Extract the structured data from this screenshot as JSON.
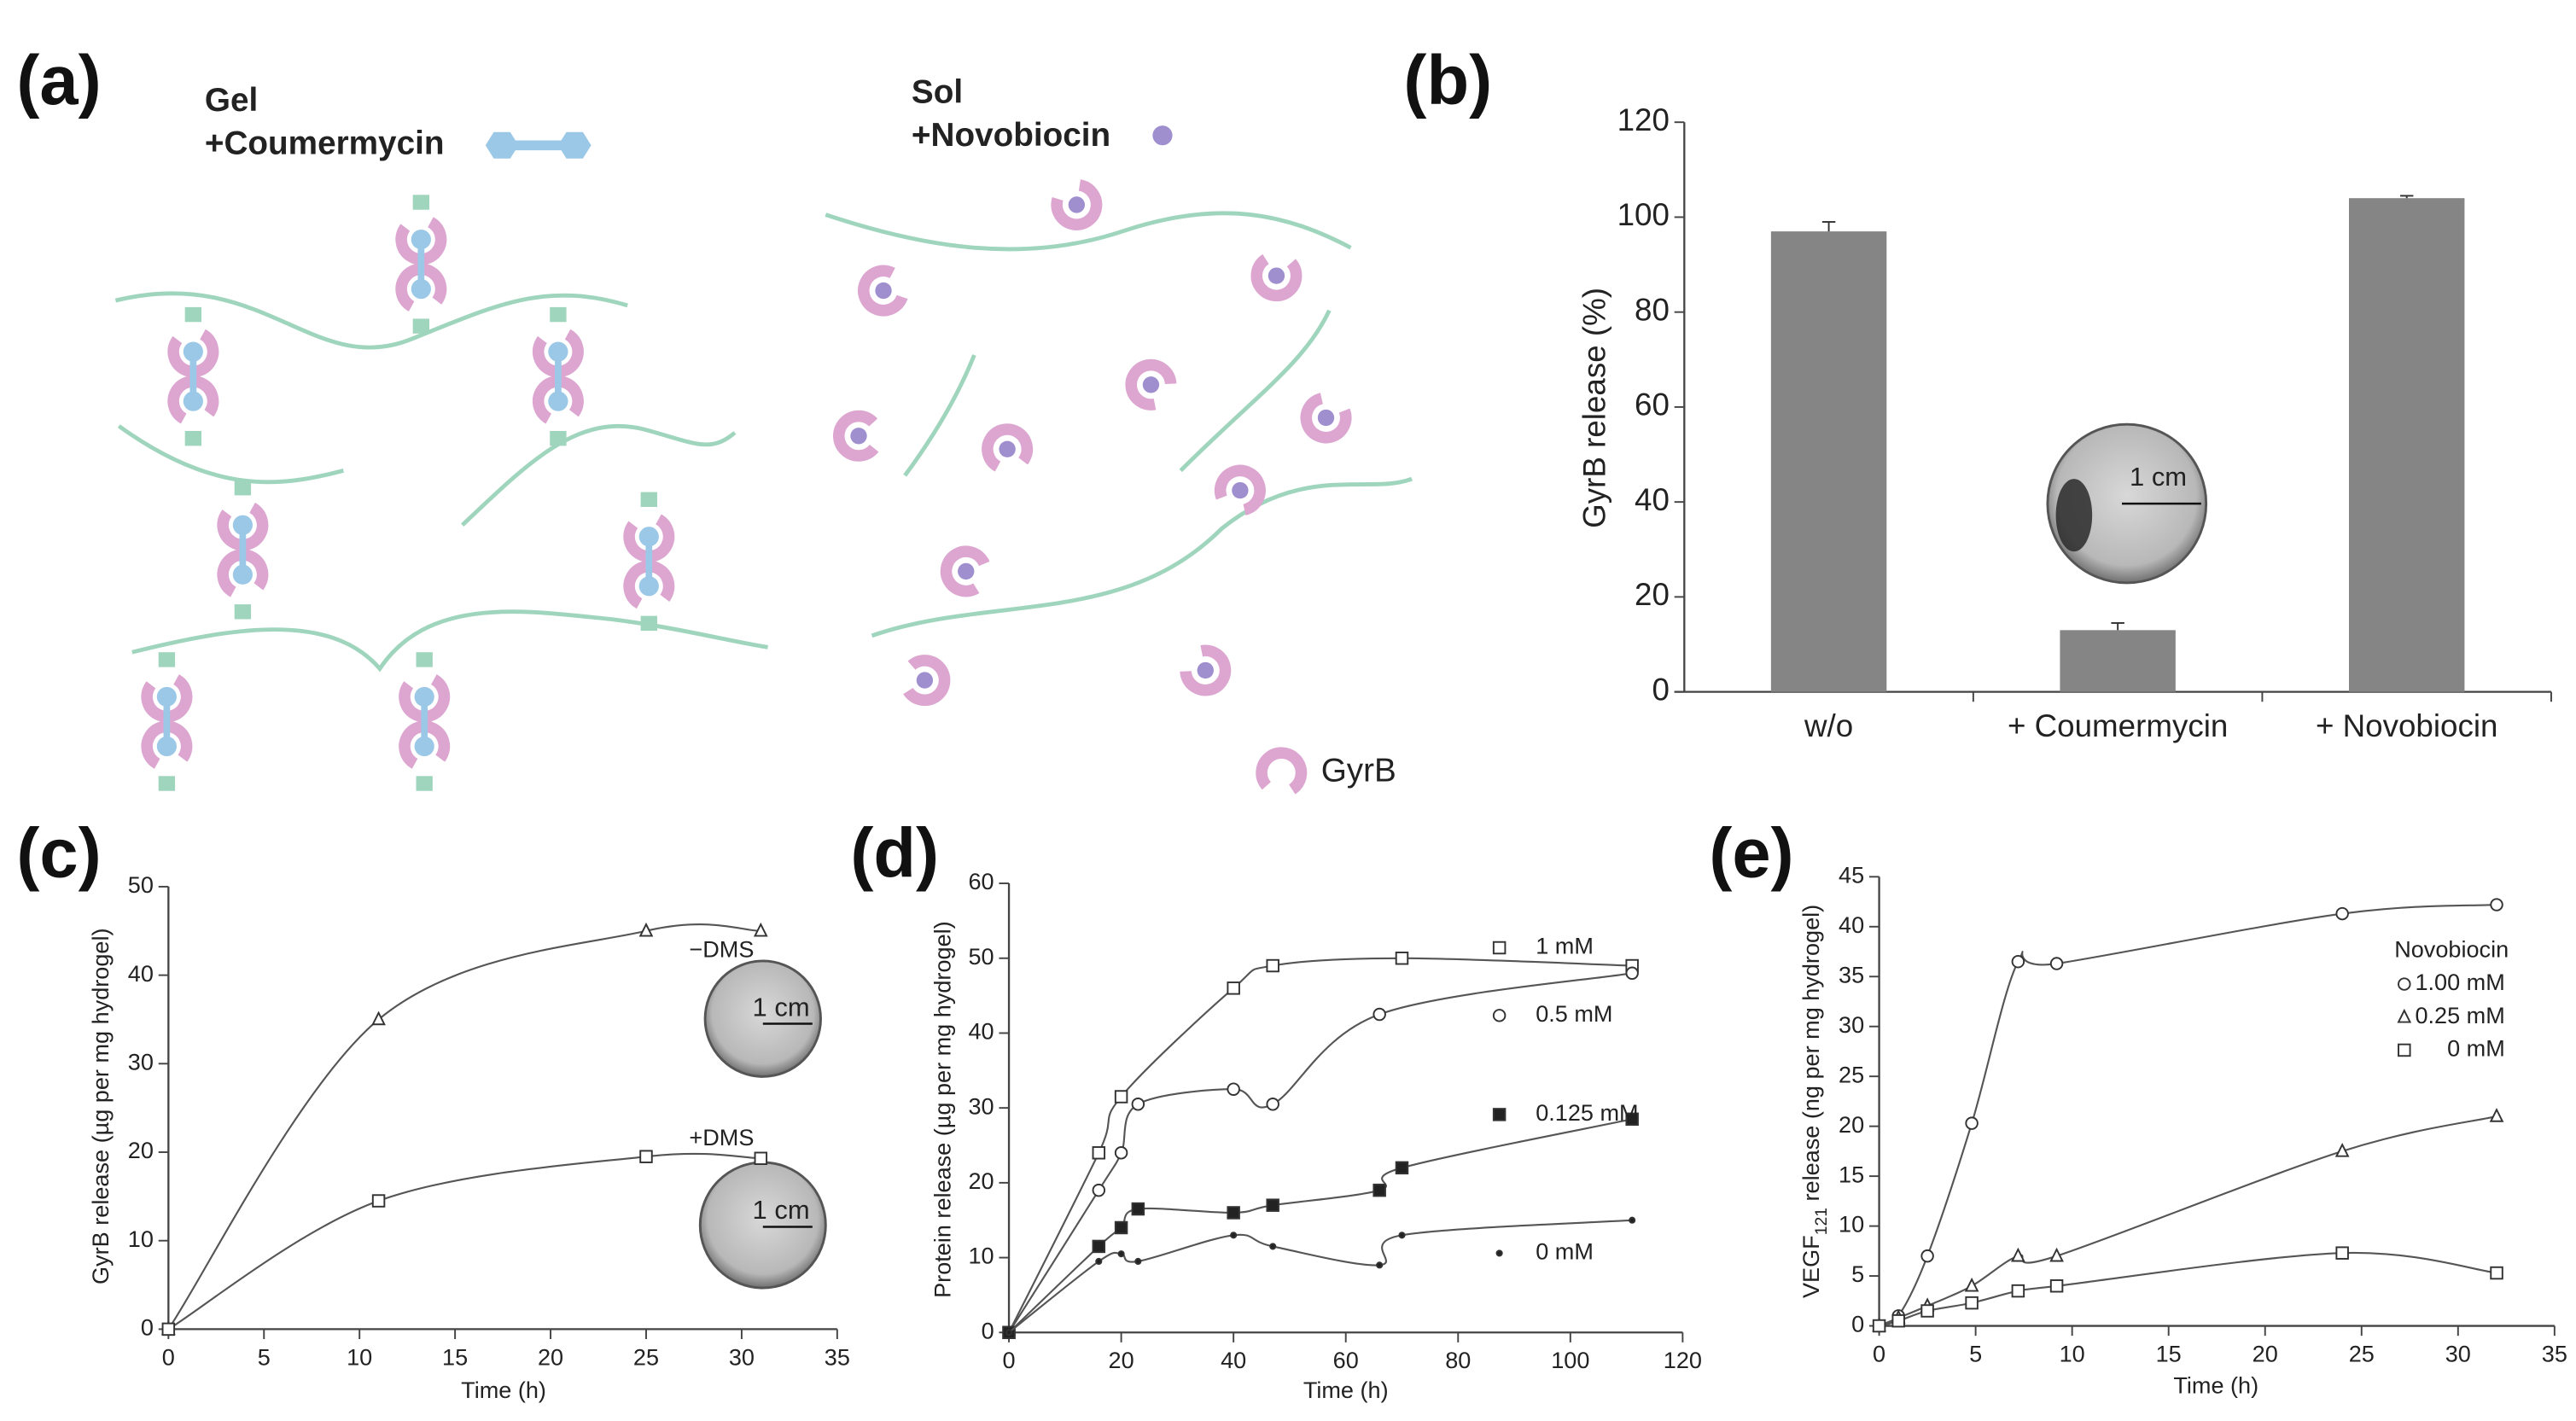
{
  "diagram": {
    "label": "(a)",
    "gel": "Gel",
    "gel_agent": "+Coumermycin",
    "sol": "Sol",
    "sol_agent": "+Novobiocin",
    "legend": "GyrB"
  },
  "chart_data": [
    {
      "type": "bar",
      "label": "(b)",
      "categories": [
        "w/o",
        "+ Coumermycin",
        "+ Novobiocin"
      ],
      "values": [
        97,
        13,
        104
      ],
      "errors": [
        2,
        1.5,
        0.5
      ],
      "color": "#858585",
      "ylabel": "GyrB release (%)",
      "ylim": [
        0,
        120
      ],
      "yticks": [
        0,
        20,
        40,
        60,
        80,
        100,
        120
      ],
      "inset_scales": [
        "1 cm"
      ]
    },
    {
      "type": "line",
      "label": "(c)",
      "xlabel": "Time (h)",
      "ylabel": "GyrB release (µg per mg hydrogel)",
      "xlim": [
        0,
        35
      ],
      "xticks": [
        0,
        5,
        10,
        15,
        20,
        25,
        30,
        35
      ],
      "ylim": [
        0,
        50
      ],
      "yticks": [
        0,
        10,
        20,
        30,
        40,
        50
      ],
      "line_color": "#555555",
      "series": [
        {
          "name": "−DMS",
          "marker": "triangle",
          "x": [
            0,
            11,
            25,
            31
          ],
          "values": [
            0,
            35,
            45,
            45
          ]
        },
        {
          "name": "+DMS",
          "marker": "square",
          "x": [
            0,
            11,
            25,
            31
          ],
          "values": [
            0,
            14.5,
            19.5,
            19.3
          ]
        }
      ],
      "inset_scales": [
        "1 cm",
        "1 cm"
      ]
    },
    {
      "type": "line",
      "label": "(d)",
      "xlabel": "Time (h)",
      "ylabel": "Protein release (µg per mg hydrogel)",
      "xlim": [
        0,
        120
      ],
      "xticks": [
        0,
        20,
        40,
        60,
        80,
        100,
        120
      ],
      "ylim": [
        0,
        60
      ],
      "yticks": [
        0,
        10,
        20,
        30,
        40,
        50,
        60
      ],
      "line_color": "#555555",
      "series": [
        {
          "name": "1 mM",
          "marker": "square",
          "x": [
            0,
            16,
            20,
            40,
            47,
            70,
            111
          ],
          "values": [
            0,
            24,
            31.5,
            46,
            49,
            50,
            49
          ]
        },
        {
          "name": "0.5 mM",
          "marker": "circle",
          "x": [
            0,
            16,
            20,
            23,
            40,
            47,
            66,
            111
          ],
          "values": [
            0,
            19,
            24,
            30.5,
            32.5,
            30.5,
            42.5,
            48
          ]
        },
        {
          "name": "0.125 mM",
          "marker": "filled-square",
          "x": [
            0,
            16,
            20,
            23,
            40,
            47,
            66,
            70,
            111
          ],
          "values": [
            0,
            11.5,
            14,
            16.5,
            16,
            17,
            19,
            22,
            28.5
          ]
        },
        {
          "name": "0 mM",
          "marker": "dot",
          "x": [
            0,
            16,
            20,
            23,
            40,
            47,
            66,
            70,
            111
          ],
          "values": [
            0,
            9.5,
            10.5,
            9.5,
            13,
            11.5,
            9,
            13,
            15
          ]
        }
      ]
    },
    {
      "type": "line",
      "label": "(e)",
      "xlabel": "Time (h)",
      "ylabel": [
        "VEGF",
        "121",
        " release (ng per mg hydrogel)"
      ],
      "xlim": [
        0,
        35
      ],
      "xticks": [
        0,
        5,
        10,
        15,
        20,
        25,
        30,
        35
      ],
      "ylim": [
        0,
        45
      ],
      "yticks": [
        0,
        5,
        10,
        15,
        20,
        25,
        30,
        35,
        40,
        45
      ],
      "line_color": "#555555",
      "legend_title": "Novobiocin",
      "series": [
        {
          "name": "1.00 mM",
          "marker": "circle",
          "x": [
            0,
            1,
            2.5,
            4.8,
            7.2,
            9.2,
            24,
            32
          ],
          "values": [
            0,
            1,
            7,
            20.3,
            36.5,
            36.3,
            41.3,
            42.2
          ]
        },
        {
          "name": "0.25 mM",
          "marker": "triangle",
          "x": [
            0,
            1,
            2.5,
            4.8,
            7.2,
            9.2,
            24,
            32
          ],
          "values": [
            0,
            0.8,
            2,
            4,
            7,
            7,
            17.5,
            21
          ]
        },
        {
          "name": "0 mM",
          "marker": "square",
          "x": [
            0,
            1,
            2.5,
            4.8,
            7.2,
            9.2,
            24,
            32
          ],
          "values": [
            0,
            0.5,
            1.5,
            2.3,
            3.5,
            4,
            7.3,
            5.3
          ]
        }
      ]
    }
  ]
}
